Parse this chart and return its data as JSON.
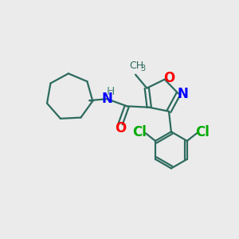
{
  "bg_color": "#ebebeb",
  "bond_color": "#2d6b5e",
  "bond_width": 1.6,
  "atom_colors": {
    "N": "#0000ff",
    "O": "#ff0000",
    "Cl": "#00aa00",
    "H_color": "#4a8a7a"
  },
  "font_size": 12,
  "font_size_small": 10
}
